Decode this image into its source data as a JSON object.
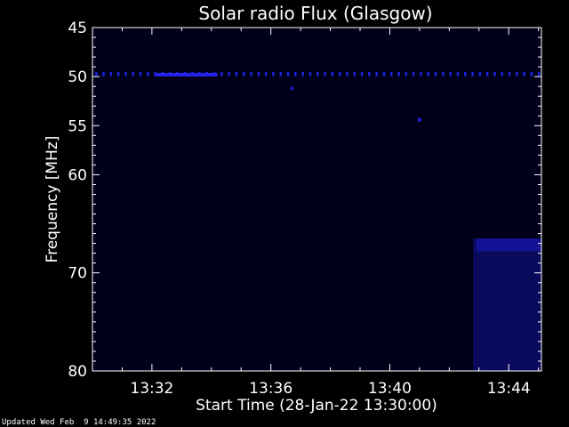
{
  "chart_data": {
    "type": "heatmap",
    "title": "Solar radio Flux (Glasgow)",
    "xlabel": "Start Time (28-Jan-22 13:30:00)",
    "ylabel": "Frequency [MHz]",
    "x_range_minutes": [
      0,
      15.1
    ],
    "x_ticks": [
      {
        "label": "13:32",
        "minutes": 2
      },
      {
        "label": "13:36",
        "minutes": 6
      },
      {
        "label": "13:40",
        "minutes": 10
      },
      {
        "label": "13:44",
        "minutes": 14
      }
    ],
    "y_range_mhz": [
      45,
      80
    ],
    "y_axis_inverted": true,
    "y_ticks": [
      45,
      50,
      55,
      60,
      70,
      80
    ],
    "colormap": {
      "low": "#00001a",
      "high": "#2f2fff"
    },
    "features": [
      {
        "type": "dotted-line",
        "freq_mhz": 49.7,
        "x_start_min": 0,
        "x_end_min": 15.1,
        "intensity": 0.8
      },
      {
        "type": "solid-band",
        "freq_mhz": 49.8,
        "x_start_min": 2.1,
        "x_end_min": 4.2,
        "intensity": 0.9
      },
      {
        "type": "spot",
        "freq_mhz": 51.2,
        "x_min": 6.7,
        "intensity": 0.6
      },
      {
        "type": "spot",
        "freq_mhz": 54.4,
        "x_min": 11.0,
        "intensity": 0.8
      },
      {
        "type": "region",
        "freq_min": 66.5,
        "freq_max": 80,
        "x_start_min": 12.8,
        "x_end_min": 15.1,
        "intensity": 0.45
      },
      {
        "type": "region",
        "freq_min": 66.5,
        "freq_max": 67.8,
        "x_start_min": 12.9,
        "x_end_min": 15.1,
        "intensity": 0.7
      }
    ]
  },
  "footer": "Updated Wed Feb  9 14:49:35 2022",
  "colors": {
    "background": "#000000",
    "axis": "#ffffff",
    "plot_background": "#000018"
  }
}
